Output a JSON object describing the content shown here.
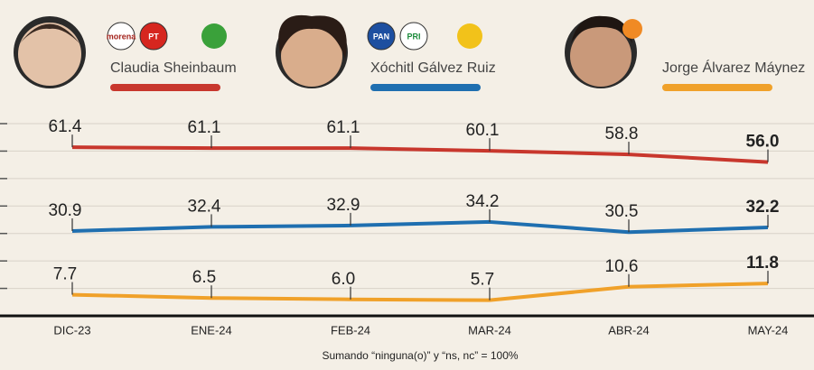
{
  "chart_data": {
    "type": "line",
    "categories": [
      "DIC-23",
      "ENE-24",
      "FEB-24",
      "MAR-24",
      "ABR-24",
      "MAY-24"
    ],
    "series": [
      {
        "name": "Claudia Sheinbaum",
        "color": "#c8372d",
        "parties": [
          "morena",
          "PT"
        ],
        "values": [
          61.4,
          61.1,
          61.1,
          60.1,
          58.8,
          56.0
        ],
        "value_labels": [
          "61.4",
          "61.1",
          "61.1",
          "60.1",
          "58.8",
          "56.0"
        ]
      },
      {
        "name": "Xóchitl Gálvez Ruiz",
        "color": "#1f6fb0",
        "parties": [
          "PAN",
          "PRI"
        ],
        "values": [
          30.9,
          32.4,
          32.9,
          34.2,
          30.5,
          32.2
        ],
        "value_labels": [
          "30.9",
          "32.4",
          "32.9",
          "34.2",
          "30.5",
          "32.2"
        ]
      },
      {
        "name": "Jorge Álvarez Máynez",
        "color": "#f0a12a",
        "parties": [],
        "values": [
          7.7,
          6.5,
          6.0,
          5.7,
          10.6,
          11.8
        ],
        "value_labels": [
          "7.7",
          "6.5",
          "6.0",
          "5.7",
          "10.6",
          "11.8"
        ]
      }
    ],
    "ylim": [
      0,
      70
    ],
    "yticks": [
      0,
      10,
      20,
      30,
      40,
      50,
      60,
      70
    ],
    "grid": true,
    "note": "Sumando “ninguna(o)” y “ns, nc” = 100%"
  }
}
